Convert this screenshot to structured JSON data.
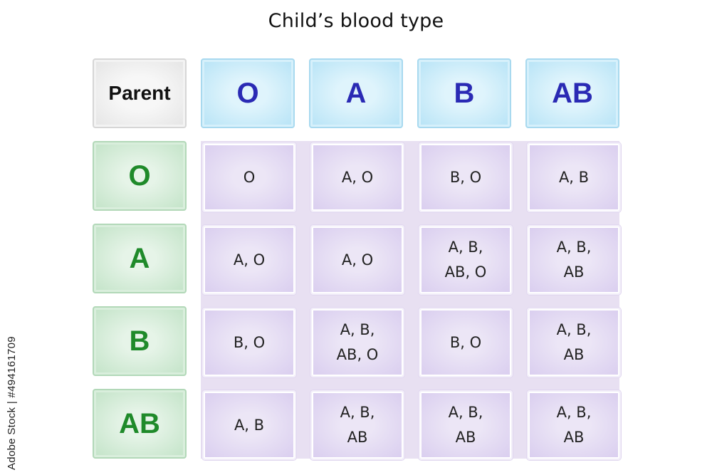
{
  "title": "Child’s blood type",
  "corner_label": "Parent",
  "columns": [
    "O",
    "A",
    "B",
    "AB"
  ],
  "rows": [
    {
      "label": "O",
      "cells": [
        "O",
        "A, O",
        "B, O",
        "A, B"
      ]
    },
    {
      "label": "A",
      "cells": [
        "A, O",
        "A, O",
        "A, B,\nAB, O",
        "A, B,\nAB"
      ]
    },
    {
      "label": "B",
      "cells": [
        "B, O",
        "A, B,\nAB, O",
        "B, O",
        "A, B,\nAB"
      ]
    },
    {
      "label": "AB",
      "cells": [
        "A, B",
        "A, B,\nAB",
        "A, B,\nAB",
        "A, B,\nAB"
      ]
    }
  ],
  "watermark_text": "Adobe Stock | #494161709",
  "colors": {
    "column_header_text": "#2a2ab4",
    "row_header_text": "#1f8a2a",
    "column_header_fill": "#b6e3f6",
    "row_header_fill": "#c2e3c7",
    "data_fill": "#d9cdef"
  }
}
